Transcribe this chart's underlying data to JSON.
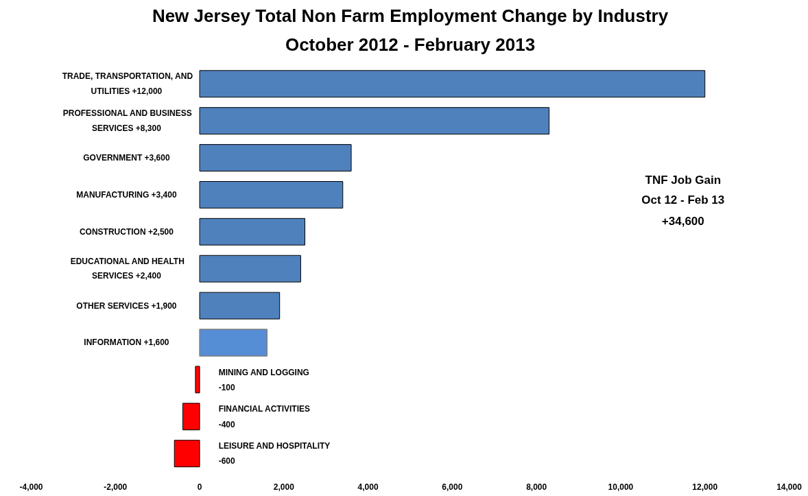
{
  "chart_data": {
    "type": "bar",
    "orientation": "horizontal",
    "title": "New Jersey Total Non Farm Employment Change by Industry",
    "subtitle": "October 2012 - February 2013",
    "categories": [
      "TRADE, TRANSPORTATION, AND UTILITIES",
      "PROFESSIONAL AND BUSINESS SERVICES",
      "GOVERNMENT",
      "MANUFACTURING",
      "CONSTRUCTION",
      "EDUCATIONAL AND HEALTH SERVICES",
      "OTHER SERVICES",
      "INFORMATION",
      "MINING AND LOGGING",
      "FINANCIAL ACTIVITIES",
      "LEISURE AND HOSPITALITY"
    ],
    "values": [
      12000,
      8300,
      3600,
      3400,
      2500,
      2400,
      1900,
      1600,
      -100,
      -400,
      -600
    ],
    "value_labels": [
      "+12,000",
      "+8,300",
      "+3,600",
      "+3,400",
      "+2,500",
      "+2,400",
      "+1,900",
      "+1,600",
      "-100",
      "-400",
      "-600"
    ],
    "colors": [
      "#4f81bd",
      "#4f81bd",
      "#4f81bd",
      "#4f81bd",
      "#4f81bd",
      "#4f81bd",
      "#4f81bd",
      "#558ed5",
      "#ff0000",
      "#ff0000",
      "#ff0000"
    ],
    "xlim": [
      -4000,
      14000
    ],
    "xticks": [
      {
        "value": -4000,
        "label": "-4,000"
      },
      {
        "value": -2000,
        "label": "-2,000"
      },
      0,
      {
        "value": 2000,
        "label": "2,000"
      },
      {
        "value": 4000,
        "label": "4,000"
      },
      {
        "value": 6000,
        "label": "6,000"
      },
      {
        "value": 8000,
        "label": "8,000"
      },
      {
        "value": 10000,
        "label": "10,000"
      },
      {
        "value": 12000,
        "label": "12,000"
      },
      {
        "value": 14000,
        "label": "14,000"
      }
    ],
    "tick_labels": "x",
    "grid": false,
    "annotations": [
      "TNF Job Gain\nOct 12 - Feb 13\n+34,600"
    ]
  }
}
